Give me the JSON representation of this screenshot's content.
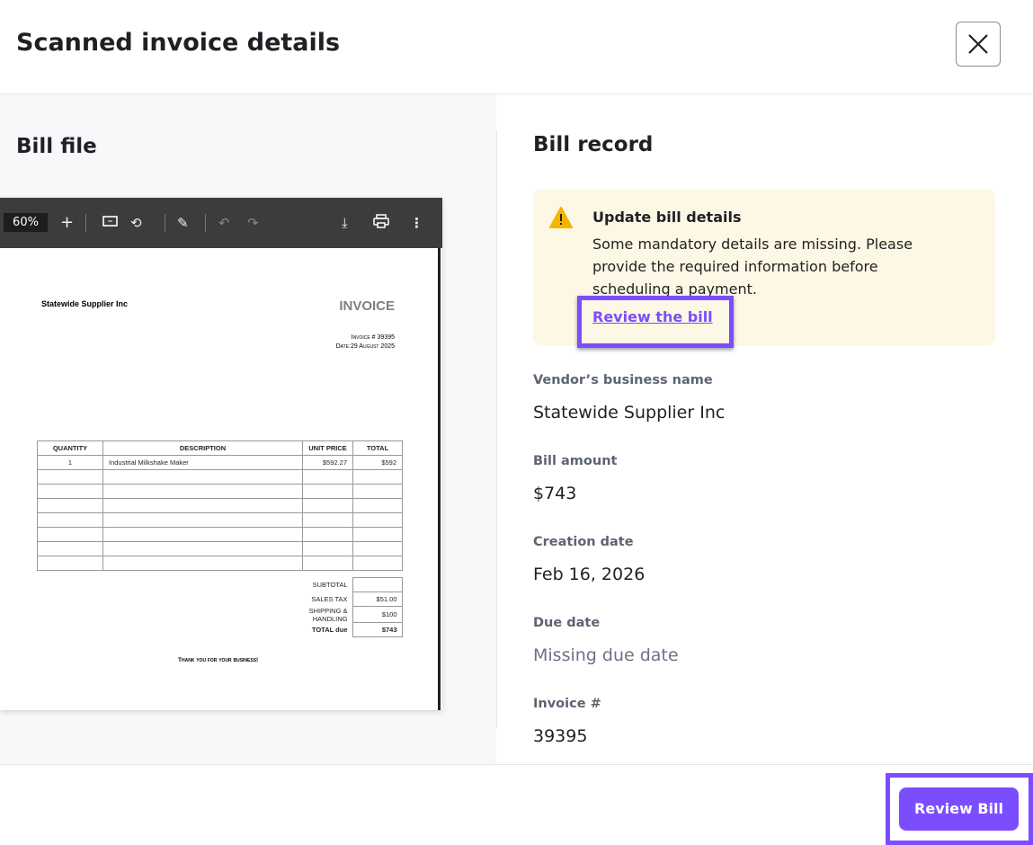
{
  "header": {
    "title": "Scanned invoice details",
    "close_icon": "close-icon"
  },
  "left": {
    "title": "Bill file",
    "viewer": {
      "zoom": "60%",
      "icons": [
        "plus-icon",
        "fit-page-icon",
        "rotate-icon",
        "draw-icon",
        "undo-icon",
        "redo-icon",
        "download-icon",
        "print-icon",
        "more-vert-icon"
      ]
    },
    "invoice": {
      "vendor": "Statewide Supplier Inc",
      "heading": "INVOICE",
      "number_line": "Invoice # 39395",
      "date_line": "Date:29 August 2025",
      "columns": [
        "QUANTITY",
        "DESCRIPTION",
        "UNIT PRICE",
        "TOTAL"
      ],
      "rows": [
        [
          "1",
          "Industrial Milkshake Maker",
          "$592.27",
          "$592"
        ]
      ],
      "totals": [
        {
          "label": "SUBTOTAL",
          "value": ""
        },
        {
          "label": "SALES TAX",
          "value": "$51.00"
        },
        {
          "label": "SHIPPING & HANDLING",
          "value": "$100"
        },
        {
          "label": "TOTAL due",
          "value": "$743"
        }
      ],
      "thanks": "Thank you for your business!"
    }
  },
  "right": {
    "title": "Bill record",
    "alert": {
      "title": "Update bill details",
      "body": "Some mandatory details are missing. Please provide the required information before scheduling a payment.",
      "link": "Review the bill",
      "color": "#fdf7e5",
      "icon": "warning-icon"
    },
    "fields": [
      {
        "label": "Vendor’s business name",
        "value": "Statewide Supplier Inc"
      },
      {
        "label": "Bill amount",
        "value": "$743"
      },
      {
        "label": "Creation date",
        "value": "Feb 16, 2026"
      },
      {
        "label": "Due date",
        "value": "Missing due date"
      },
      {
        "label": "Invoice #",
        "value": "39395"
      }
    ]
  },
  "footer": {
    "review_button": "Review Bill",
    "accent": "#7c4dff"
  }
}
